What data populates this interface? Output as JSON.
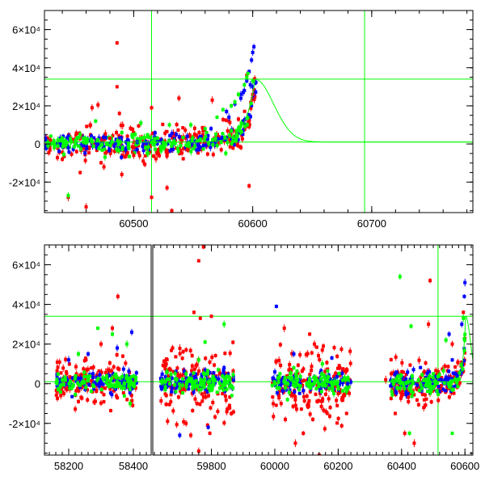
{
  "colors": {
    "red": "#ff0000",
    "blue": "#0000ff",
    "green": "#00ff00",
    "model": "#00ff00",
    "axis": "#000000"
  },
  "chart_data": [
    {
      "type": "scatter",
      "title": "",
      "xlabel": "",
      "ylabel": "",
      "xlim": [
        60425,
        60785
      ],
      "ylim": [
        -36000,
        70000
      ],
      "grid": false,
      "x_ticks": [
        60500,
        60600,
        60700
      ],
      "y_ticks": [
        {
          "value": -20000,
          "label": "-2×10⁴"
        },
        {
          "value": 0,
          "label": "0"
        },
        {
          "value": 20000,
          "label": "2×10⁴"
        },
        {
          "value": 40000,
          "label": "4×10⁴"
        },
        {
          "value": 60000,
          "label": "6×10⁴"
        }
      ],
      "reference_lines": {
        "horizontal": [
          34000,
          1000
        ],
        "vertical": [
          60515,
          60694
        ]
      },
      "model_curve": {
        "peak_x": 60602,
        "peak_y": 34000,
        "baseline": 1000,
        "rise_tau": 8,
        "decay_tau": 22
      },
      "series": [
        {
          "color": "red",
          "points": [
            [
              60486,
              53000
            ],
            [
              60486,
              30000
            ],
            [
              60470,
              20500
            ],
            [
              60465,
              19000
            ],
            [
              60515,
              19000
            ],
            [
              60538,
              24000
            ],
            [
              60566,
              23000
            ],
            [
              60488,
              16000
            ],
            [
              60440,
              -8000
            ],
            [
              60452,
              -4000
            ],
            [
              60455,
              -15000
            ],
            [
              60475,
              -12000
            ],
            [
              60490,
              -16000
            ],
            [
              60508,
              -9000
            ],
            [
              60528,
              -23000
            ],
            [
              60532,
              -35000
            ],
            [
              60515,
              -28000
            ],
            [
              60597,
              -22000
            ],
            [
              60595,
              36000
            ],
            [
              60588,
              13000
            ],
            [
              60445,
              -28000
            ],
            [
              60460,
              -33000
            ],
            [
              60500,
              -6000
            ],
            [
              60520,
              -5000
            ],
            [
              60545,
              -3000
            ],
            [
              60430,
              2000
            ],
            [
              60480,
              3000
            ],
            [
              60555,
              6000
            ],
            [
              60580,
              12000
            ],
            [
              60600,
              26000
            ]
          ]
        },
        {
          "color": "blue",
          "points": [
            [
              60601,
              51000
            ],
            [
              60600,
              48000
            ],
            [
              60599,
              44000
            ],
            [
              60597,
              38000
            ],
            [
              60595,
              33000
            ],
            [
              60598,
              31000
            ],
            [
              60600,
              30000
            ],
            [
              60593,
              28000
            ],
            [
              60590,
              24000
            ],
            [
              60585,
              21000
            ],
            [
              60592,
              27000
            ],
            [
              60580,
              14000
            ],
            [
              60565,
              8000
            ],
            [
              60545,
              4000
            ],
            [
              60520,
              2000
            ],
            [
              60503,
              1000
            ],
            [
              60470,
              0
            ],
            [
              60445,
              -2000
            ],
            [
              60590,
              26000
            ],
            [
              60578,
              17000
            ]
          ]
        },
        {
          "color": "green",
          "points": [
            [
              60596,
              37000
            ],
            [
              60595,
              35000
            ],
            [
              60593,
              31000
            ],
            [
              60588,
              26000
            ],
            [
              60585,
              22000
            ],
            [
              60575,
              18000
            ],
            [
              60570,
              14000
            ],
            [
              60548,
              10000
            ],
            [
              60530,
              10000
            ],
            [
              60506,
              11000
            ],
            [
              60468,
              12000
            ],
            [
              60455,
              5000
            ],
            [
              60440,
              2000
            ],
            [
              60428,
              -1000
            ],
            [
              60490,
              6000
            ],
            [
              60520,
              3000
            ],
            [
              60560,
              8000
            ],
            [
              60582,
              20000
            ],
            [
              60600,
              33000
            ],
            [
              60445,
              -27000
            ]
          ]
        }
      ]
    },
    {
      "type": "scatter",
      "title": "",
      "xlabel": "",
      "ylabel": "",
      "xlim": [
        58125,
        60625
      ],
      "ylim": [
        -36000,
        70000
      ],
      "grid": false,
      "x_ticks": [
        58200,
        58400,
        59800,
        60000,
        60200,
        60400,
        60600
      ],
      "broken_axis": [
        [
          58125,
          58455
        ],
        [
          59615,
          60625
        ]
      ],
      "y_ticks": [
        {
          "value": -20000,
          "label": "-2×10⁴"
        },
        {
          "value": 0,
          "label": "0"
        },
        {
          "value": 20000,
          "label": "2×10⁴"
        },
        {
          "value": 40000,
          "label": "4×10⁴"
        },
        {
          "value": 60000,
          "label": "6×10⁴"
        }
      ],
      "reference_lines": {
        "horizontal": [
          34000,
          1000
        ],
        "vertical": [
          60515
        ]
      },
      "model_curve": {
        "peak_x": 60602,
        "peak_y": 34000,
        "baseline": 1000,
        "rise_tau": 8,
        "decay_tau": 22
      },
      "seasons": [
        {
          "x0": 58160,
          "x1": 58410
        },
        {
          "x0": 59640,
          "x1": 59870
        },
        {
          "x0": 59990,
          "x1": 60240
        },
        {
          "x0": 60365,
          "x1": 60600
        }
      ],
      "series": [
        {
          "color": "red",
          "points": [
            [
              58352,
              44000
            ],
            [
              58335,
              28000
            ],
            [
              58300,
              20000
            ],
            [
              58230,
              -9000
            ],
            [
              58185,
              -5000
            ],
            [
              59775,
              69000
            ],
            [
              59760,
              62000
            ],
            [
              59745,
              36000
            ],
            [
              59765,
              33000
            ],
            [
              59800,
              34000
            ],
            [
              59720,
              -20000
            ],
            [
              59735,
              -26000
            ],
            [
              59760,
              -34000
            ],
            [
              59795,
              -25000
            ],
            [
              59820,
              -14000
            ],
            [
              60030,
              28000
            ],
            [
              60110,
              25000
            ],
            [
              60125,
              20000
            ],
            [
              60150,
              17000
            ],
            [
              60120,
              -18000
            ],
            [
              60140,
              -36000
            ],
            [
              60065,
              -30000
            ],
            [
              60090,
              -25000
            ],
            [
              60175,
              -12000
            ],
            [
              60200,
              -5000
            ],
            [
              60380,
              -15000
            ],
            [
              60410,
              -25000
            ],
            [
              60440,
              -30000
            ],
            [
              60470,
              -12000
            ],
            [
              60490,
              52000
            ],
            [
              60485,
              30000
            ],
            [
              60560,
              20000
            ],
            [
              60595,
              36000
            ],
            [
              60350,
              2000
            ],
            [
              60020,
              -10000
            ]
          ]
        },
        {
          "color": "blue",
          "points": [
            [
              58395,
              26000
            ],
            [
              58350,
              18000
            ],
            [
              58260,
              15000
            ],
            [
              58200,
              12000
            ],
            [
              59700,
              -26000
            ],
            [
              59790,
              -22000
            ],
            [
              59840,
              8000
            ],
            [
              60005,
              39000
            ],
            [
              60060,
              15000
            ],
            [
              60180,
              13000
            ],
            [
              60600,
              51000
            ],
            [
              60598,
              44000
            ],
            [
              60590,
              30000
            ],
            [
              60560,
              12000
            ],
            [
              60420,
              -5000
            ],
            [
              60550,
              25000
            ],
            [
              60380,
              5000
            ],
            [
              60230,
              0
            ]
          ]
        },
        {
          "color": "green",
          "points": [
            [
              58290,
              28000
            ],
            [
              58335,
              25000
            ],
            [
              58230,
              15000
            ],
            [
              58380,
              20000
            ],
            [
              58390,
              -10000
            ],
            [
              59780,
              21000
            ],
            [
              59840,
              30000
            ],
            [
              59760,
              12000
            ],
            [
              59720,
              5000
            ],
            [
              60060,
              8000
            ],
            [
              60150,
              10000
            ],
            [
              60220,
              3000
            ],
            [
              60395,
              54000
            ],
            [
              60430,
              29000
            ],
            [
              60425,
              -25000
            ],
            [
              60560,
              -25000
            ],
            [
              60540,
              22000
            ],
            [
              60595,
              33000
            ],
            [
              60500,
              5000
            ],
            [
              60040,
              -8000
            ]
          ]
        }
      ]
    }
  ]
}
